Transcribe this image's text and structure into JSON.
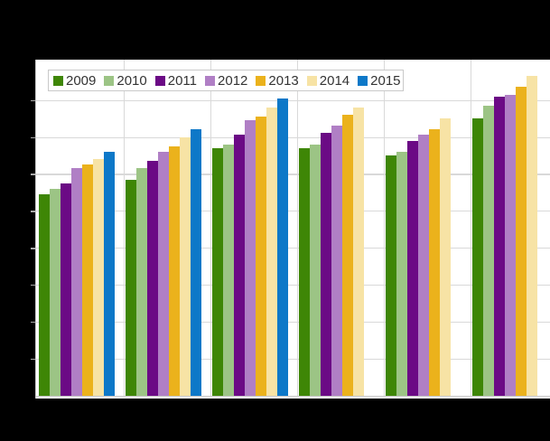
{
  "canvas": {
    "background_color": "#000000",
    "title_visible": false,
    "axis_labels_visible": false
  },
  "plot": {
    "background_color": "#ffffff",
    "gridline_color": "#d9d9d9",
    "axis_line_color": "#c9c9c9",
    "legend_border_color": "#c9c9c9",
    "legend_text_color": "#333333"
  },
  "legend": {
    "position": "top-left",
    "items": [
      "2009",
      "2010",
      "2011",
      "2012",
      "2013",
      "2014",
      "2015"
    ]
  },
  "chart_data": {
    "type": "bar",
    "title": "",
    "xlabel": "",
    "ylabel": "",
    "categories": [
      "",
      "",
      "",
      "",
      "",
      ""
    ],
    "categories_note": "6 category groups; tick labels not visible in image",
    "value_unit": "gridline-intervals (no numeric axis labels visible; 1.0 = one horizontal gridline spacing)",
    "ylim": [
      0,
      9.1
    ],
    "grid": true,
    "legend_position": "top-left",
    "series": [
      {
        "name": "2009",
        "color": "#3e8606",
        "values": [
          5.45,
          5.85,
          6.7,
          6.7,
          6.5,
          7.5
        ]
      },
      {
        "name": "2010",
        "color": "#9cc485",
        "values": [
          5.6,
          6.15,
          6.8,
          6.8,
          6.6,
          7.85
        ]
      },
      {
        "name": "2011",
        "color": "#6b0a85",
        "values": [
          5.75,
          6.35,
          7.05,
          7.1,
          6.9,
          8.1
        ]
      },
      {
        "name": "2012",
        "color": "#b07fc5",
        "values": [
          6.15,
          6.6,
          7.45,
          7.3,
          7.05,
          8.15
        ]
      },
      {
        "name": "2013",
        "color": "#ebb21c",
        "values": [
          6.25,
          6.75,
          7.55,
          7.6,
          7.2,
          8.35
        ]
      },
      {
        "name": "2014",
        "color": "#f7e3a5",
        "values": [
          6.4,
          7.0,
          7.8,
          7.8,
          7.5,
          8.65
        ]
      },
      {
        "name": "2015",
        "color": "#0d78c8",
        "values": [
          6.6,
          7.2,
          8.05,
          null,
          null,
          null
        ]
      }
    ]
  }
}
